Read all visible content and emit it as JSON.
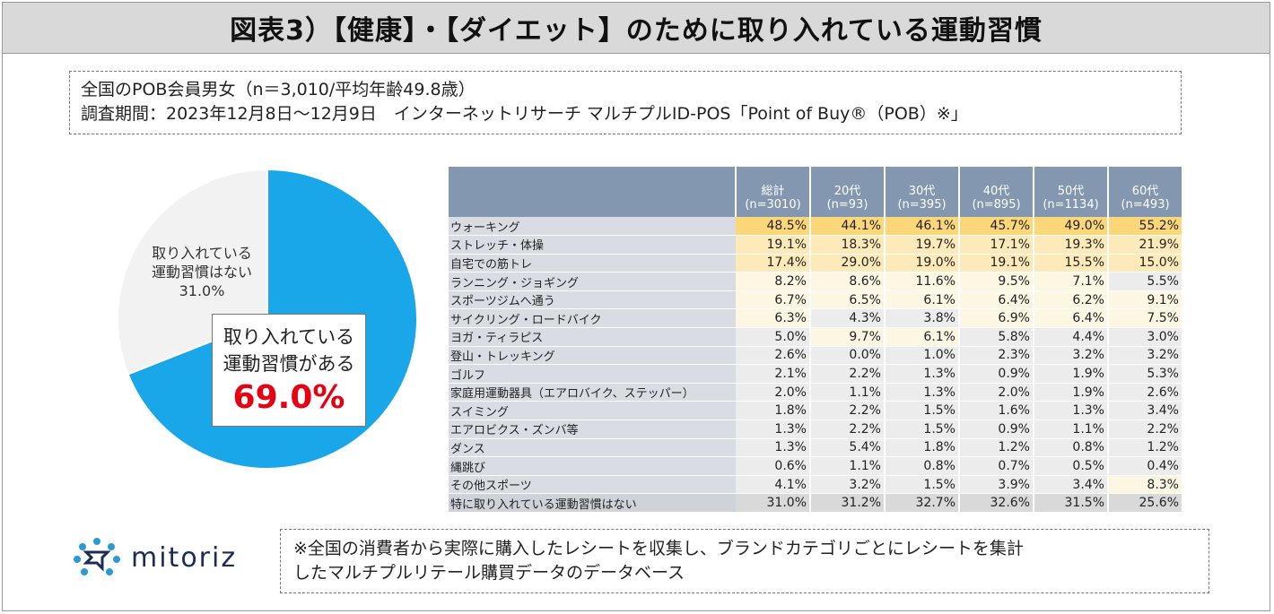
{
  "title": "図表3）【健康】・【ダイエット】のために取り入れている運動習慣",
  "info": {
    "line1": "全国のPOB会員男女（n＝3,010/平均年齢49.8歳）",
    "line2": "調査期間：2023年12月8日～12月9日　インターネットリサーチ マルチプルID-POS「Point of Buy®（POB）※」"
  },
  "pie": {
    "callout_line1": "取り入れている",
    "callout_line2": "運動習慣がある",
    "callout_pct": "69.0%",
    "none_line1": "取り入れている",
    "none_line2": "運動習慣はない",
    "none_pct": "31.0%"
  },
  "chart_data": [
    {
      "type": "pie",
      "title": "",
      "slices": [
        {
          "label": "取り入れている運動習慣がある",
          "value": 69.0,
          "color": "#1aa7ea"
        },
        {
          "label": "取り入れている運動習慣はない",
          "value": 31.0,
          "color": "#f2f2f2"
        }
      ]
    },
    {
      "type": "table",
      "columns": [
        {
          "l1": "総計",
          "l2": "(n=3010)"
        },
        {
          "l1": "20代",
          "l2": "(n=93)"
        },
        {
          "l1": "30代",
          "l2": "(n=395)"
        },
        {
          "l1": "40代",
          "l2": "(n=895)"
        },
        {
          "l1": "50代",
          "l2": "(n=1134)"
        },
        {
          "l1": "60代",
          "l2": "(n=493)"
        }
      ],
      "rows": [
        {
          "label": "ウォーキング",
          "values": [
            48.5,
            44.1,
            46.1,
            45.7,
            49.0,
            55.2
          ]
        },
        {
          "label": "ストレッチ・体操",
          "values": [
            19.1,
            18.3,
            19.7,
            17.1,
            19.3,
            21.9
          ]
        },
        {
          "label": "自宅での筋トレ",
          "values": [
            17.4,
            29.0,
            19.0,
            19.1,
            15.5,
            15.0
          ]
        },
        {
          "label": "ランニング・ジョギング",
          "values": [
            8.2,
            8.6,
            11.6,
            9.5,
            7.1,
            5.5
          ]
        },
        {
          "label": "スポーツジムへ通う",
          "values": [
            6.7,
            6.5,
            6.1,
            6.4,
            6.2,
            9.1
          ]
        },
        {
          "label": "サイクリング・ロードバイク",
          "values": [
            6.3,
            4.3,
            3.8,
            6.9,
            6.4,
            7.5
          ]
        },
        {
          "label": "ヨガ・ティラピス",
          "values": [
            5.0,
            9.7,
            6.1,
            5.8,
            4.4,
            3.0
          ]
        },
        {
          "label": "登山・トレッキング",
          "values": [
            2.6,
            0.0,
            1.0,
            2.3,
            3.2,
            3.2
          ]
        },
        {
          "label": "ゴルフ",
          "values": [
            2.1,
            2.2,
            1.3,
            0.9,
            1.9,
            5.3
          ]
        },
        {
          "label": "家庭用運動器具（エアロバイク、ステッパー）",
          "values": [
            2.0,
            1.1,
            1.3,
            2.0,
            1.9,
            2.6
          ]
        },
        {
          "label": "スイミング",
          "values": [
            1.8,
            2.2,
            1.5,
            1.6,
            1.3,
            3.4
          ]
        },
        {
          "label": "エアロビクス・ズンバ等",
          "values": [
            1.3,
            2.2,
            1.5,
            0.9,
            1.1,
            2.2
          ]
        },
        {
          "label": "ダンス",
          "values": [
            1.3,
            5.4,
            1.8,
            1.2,
            0.8,
            1.2
          ]
        },
        {
          "label": "縄跳び",
          "values": [
            0.6,
            1.1,
            0.8,
            0.7,
            0.5,
            0.4
          ]
        },
        {
          "label": "その他スポーツ",
          "values": [
            4.1,
            3.2,
            1.5,
            3.9,
            3.4,
            8.3
          ]
        },
        {
          "label": "特に取り入れている運動習慣はない",
          "values": [
            31.0,
            31.2,
            32.7,
            32.6,
            31.5,
            25.6
          ]
        }
      ]
    }
  ],
  "logo": {
    "text": "mitoriz"
  },
  "note": {
    "line1": "※全国の消費者から実際に購入したレシートを収集し、ブランドカテゴリごとにレシートを集計",
    "line2": "したマルチプルリテール購買データのデータベース"
  },
  "colors": {
    "header": "#8497b0",
    "high": "#fbd77a",
    "mid": "#fdeab8",
    "low": "#fdf6e3",
    "neutral": "#ececec",
    "grayRow": "#d9d9d9",
    "pieBlue": "#1aa7ea",
    "piePct": "#e60012"
  }
}
